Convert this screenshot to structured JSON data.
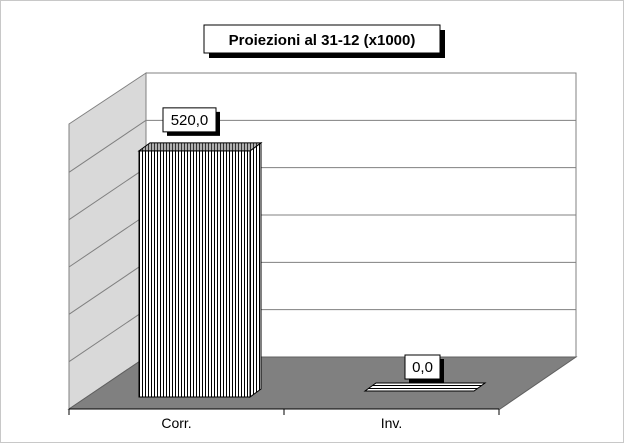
{
  "chart_data": {
    "type": "bar",
    "title": "Proiezioni al 31-12 (x1000)",
    "categories": [
      "Corr.",
      "Inv."
    ],
    "values": [
      520.0,
      0.0
    ],
    "data_labels": [
      "520,0",
      "0,0"
    ],
    "ylim": [
      0,
      600
    ],
    "grid": true,
    "legend": "none",
    "style": "3d-column",
    "colors": {
      "floor": "#808080",
      "side_wall": "#d9d9d9",
      "back_wall": "#ffffff",
      "bar_fill": "#ffffff",
      "bar_stripe": "#000000"
    }
  }
}
